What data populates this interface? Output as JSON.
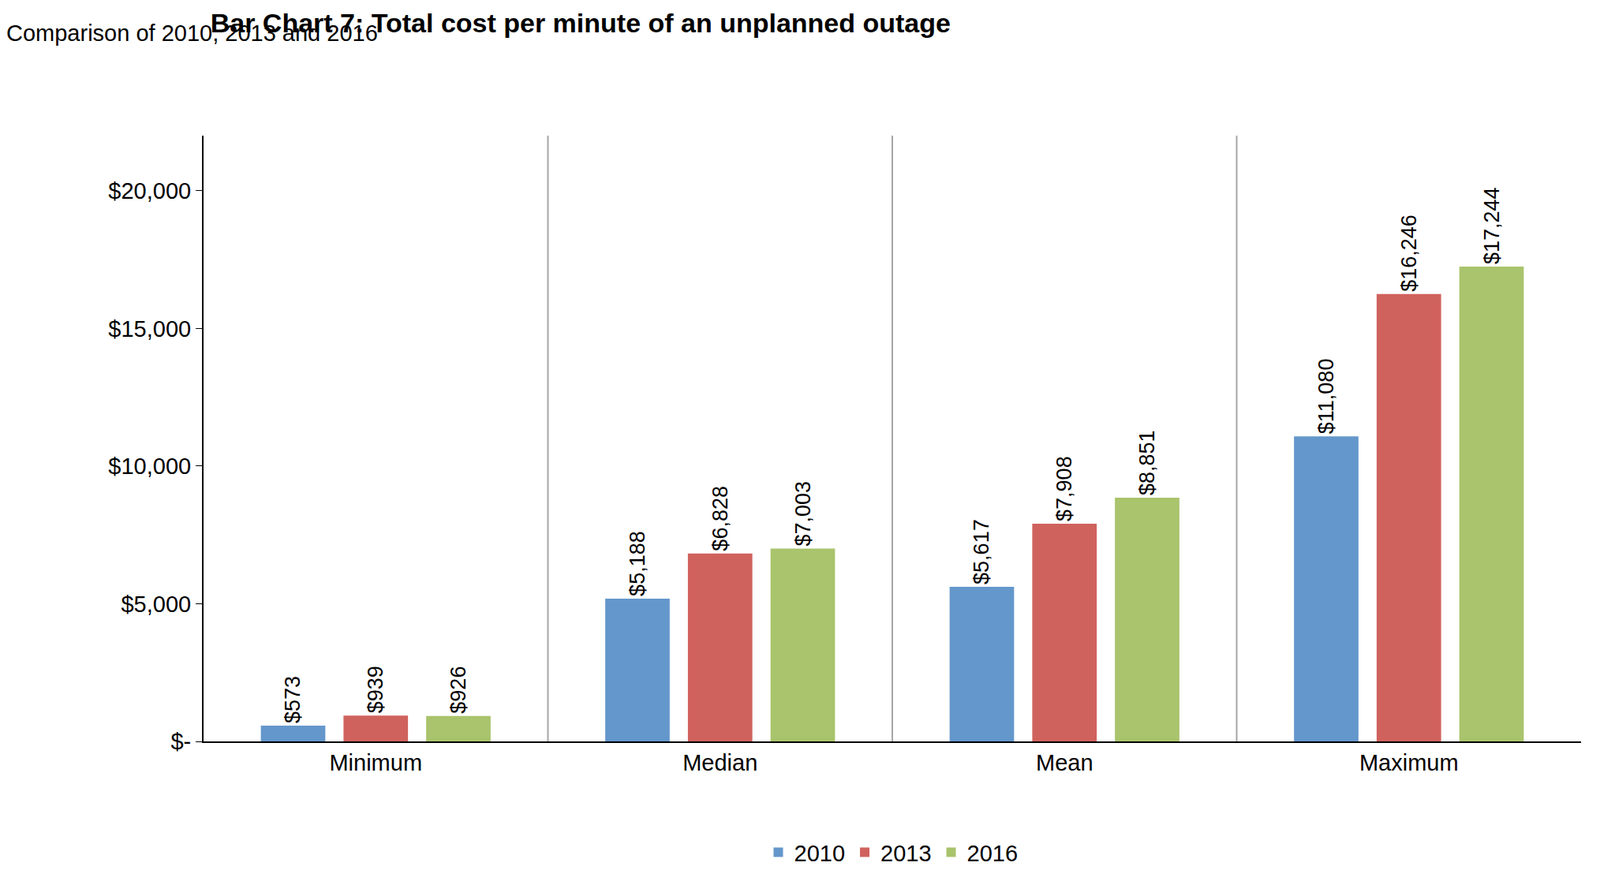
{
  "chart_data": {
    "type": "bar",
    "title": "Bar Chart 7: Total cost per minute of an unplanned outage",
    "subtitle": "Comparison of 2010, 2013 and 2016",
    "categories": [
      "Minimum",
      "Median",
      "Mean",
      "Maximum"
    ],
    "series": [
      {
        "name": "2010",
        "color": "#6497CB",
        "values": [
          573,
          5188,
          5617,
          11080
        ],
        "value_labels": [
          "$573",
          "$5,188",
          "$5,617",
          "$11,080"
        ]
      },
      {
        "name": "2013",
        "color": "#D0625D",
        "values": [
          939,
          6828,
          7908,
          16246
        ],
        "value_labels": [
          "$939",
          "$6,828",
          "$7,908",
          "$16,246"
        ]
      },
      {
        "name": "2016",
        "color": "#A9C46C",
        "values": [
          926,
          7003,
          8851,
          17244
        ],
        "value_labels": [
          "$926",
          "$7,003",
          "$8,851",
          "$17,244"
        ]
      }
    ],
    "ylim": [
      0,
      22000
    ],
    "yticks": [
      {
        "value": 0,
        "label": "$-"
      },
      {
        "value": 5000,
        "label": "$5,000"
      },
      {
        "value": 10000,
        "label": "$10,000"
      },
      {
        "value": 15000,
        "label": "$15,000"
      },
      {
        "value": 20000,
        "label": "$20,000"
      }
    ],
    "grid": false,
    "legend": "bottom",
    "data_labels": true
  }
}
